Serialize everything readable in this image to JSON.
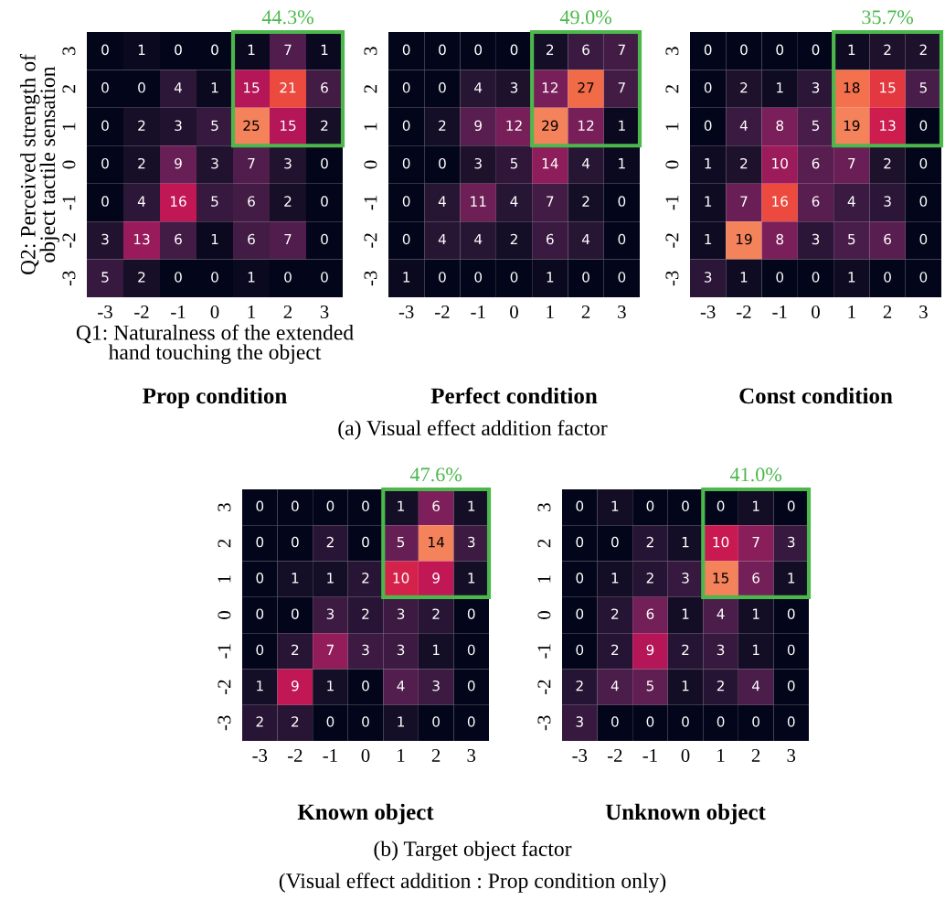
{
  "chart_data": [
    {
      "type": "heatmap",
      "title": "Prop condition",
      "xlabel": "Q1: Naturalness of the extended\nhand touching the object",
      "ylabel": "Q2: Perceived strength of\nobject tactile sensation",
      "categories": [
        "-3",
        "-2",
        "-1",
        "0",
        "1",
        "2",
        "3"
      ],
      "y_categories": [
        "3",
        "2",
        "1",
        "0",
        "-1",
        "-2",
        "-3"
      ],
      "data_labels": true,
      "cells": [
        [
          0,
          1,
          0,
          0,
          1,
          7,
          1
        ],
        [
          0,
          0,
          4,
          1,
          15,
          21,
          6
        ],
        [
          0,
          2,
          3,
          5,
          25,
          15,
          2
        ],
        [
          0,
          2,
          9,
          3,
          7,
          3,
          0
        ],
        [
          0,
          4,
          16,
          5,
          6,
          2,
          0
        ],
        [
          3,
          13,
          6,
          1,
          6,
          7,
          0
        ],
        [
          5,
          2,
          0,
          0,
          1,
          0,
          0
        ]
      ],
      "annotations": [
        "44.3%"
      ]
    },
    {
      "type": "heatmap",
      "title": "Perfect condition",
      "categories": [
        "-3",
        "-2",
        "-1",
        "0",
        "1",
        "2",
        "3"
      ],
      "y_categories": [
        "3",
        "2",
        "1",
        "0",
        "-1",
        "-2",
        "-3"
      ],
      "data_labels": true,
      "cells": [
        [
          0,
          0,
          0,
          0,
          2,
          6,
          7
        ],
        [
          0,
          0,
          4,
          3,
          12,
          27,
          7
        ],
        [
          0,
          2,
          9,
          12,
          29,
          12,
          1
        ],
        [
          0,
          0,
          3,
          5,
          14,
          4,
          1
        ],
        [
          0,
          4,
          11,
          4,
          7,
          2,
          0
        ],
        [
          0,
          4,
          4,
          2,
          6,
          4,
          0
        ],
        [
          1,
          0,
          0,
          0,
          1,
          0,
          0
        ]
      ],
      "annotations": [
        "49.0%",
        "(a) Visual effect addition factor"
      ]
    },
    {
      "type": "heatmap",
      "title": "Const condition",
      "categories": [
        "-3",
        "-2",
        "-1",
        "0",
        "1",
        "2",
        "3"
      ],
      "y_categories": [
        "3",
        "2",
        "1",
        "0",
        "-1",
        "-2",
        "-3"
      ],
      "data_labels": true,
      "cells": [
        [
          0,
          0,
          0,
          0,
          1,
          2,
          2
        ],
        [
          0,
          2,
          1,
          3,
          18,
          15,
          5
        ],
        [
          0,
          4,
          8,
          5,
          19,
          13,
          0
        ],
        [
          1,
          2,
          10,
          6,
          7,
          2,
          0
        ],
        [
          1,
          7,
          16,
          6,
          4,
          3,
          0
        ],
        [
          1,
          19,
          8,
          3,
          5,
          6,
          0
        ],
        [
          3,
          1,
          0,
          0,
          1,
          0,
          0
        ]
      ],
      "annotations": [
        "35.7%"
      ]
    },
    {
      "type": "heatmap",
      "title": "Known object",
      "categories": [
        "-3",
        "-2",
        "-1",
        "0",
        "1",
        "2",
        "3"
      ],
      "y_categories": [
        "3",
        "2",
        "1",
        "0",
        "-1",
        "-2",
        "-3"
      ],
      "data_labels": true,
      "cells": [
        [
          0,
          0,
          0,
          0,
          1,
          6,
          1
        ],
        [
          0,
          0,
          2,
          0,
          5,
          14,
          3
        ],
        [
          0,
          1,
          1,
          2,
          10,
          9,
          1
        ],
        [
          0,
          0,
          3,
          2,
          3,
          2,
          0
        ],
        [
          0,
          2,
          7,
          3,
          3,
          1,
          0
        ],
        [
          1,
          9,
          1,
          0,
          4,
          3,
          0
        ],
        [
          2,
          2,
          0,
          0,
          1,
          0,
          0
        ]
      ],
      "annotations": [
        "47.6%",
        "(b) Target object factor",
        "(Visual effect addition : Prop condition only)"
      ]
    },
    {
      "type": "heatmap",
      "title": "Unknown object",
      "categories": [
        "-3",
        "-2",
        "-1",
        "0",
        "1",
        "2",
        "3"
      ],
      "y_categories": [
        "3",
        "2",
        "1",
        "0",
        "-1",
        "-2",
        "-3"
      ],
      "data_labels": true,
      "cells": [
        [
          0,
          1,
          0,
          0,
          0,
          1,
          0
        ],
        [
          0,
          0,
          2,
          1,
          10,
          7,
          3
        ],
        [
          0,
          1,
          2,
          3,
          15,
          6,
          1
        ],
        [
          0,
          2,
          6,
          1,
          4,
          1,
          0
        ],
        [
          0,
          2,
          9,
          2,
          3,
          1,
          0
        ],
        [
          2,
          4,
          5,
          1,
          2,
          4,
          0
        ],
        [
          3,
          0,
          0,
          0,
          0,
          0,
          0
        ]
      ],
      "annotations": [
        "41.0%"
      ]
    }
  ]
}
